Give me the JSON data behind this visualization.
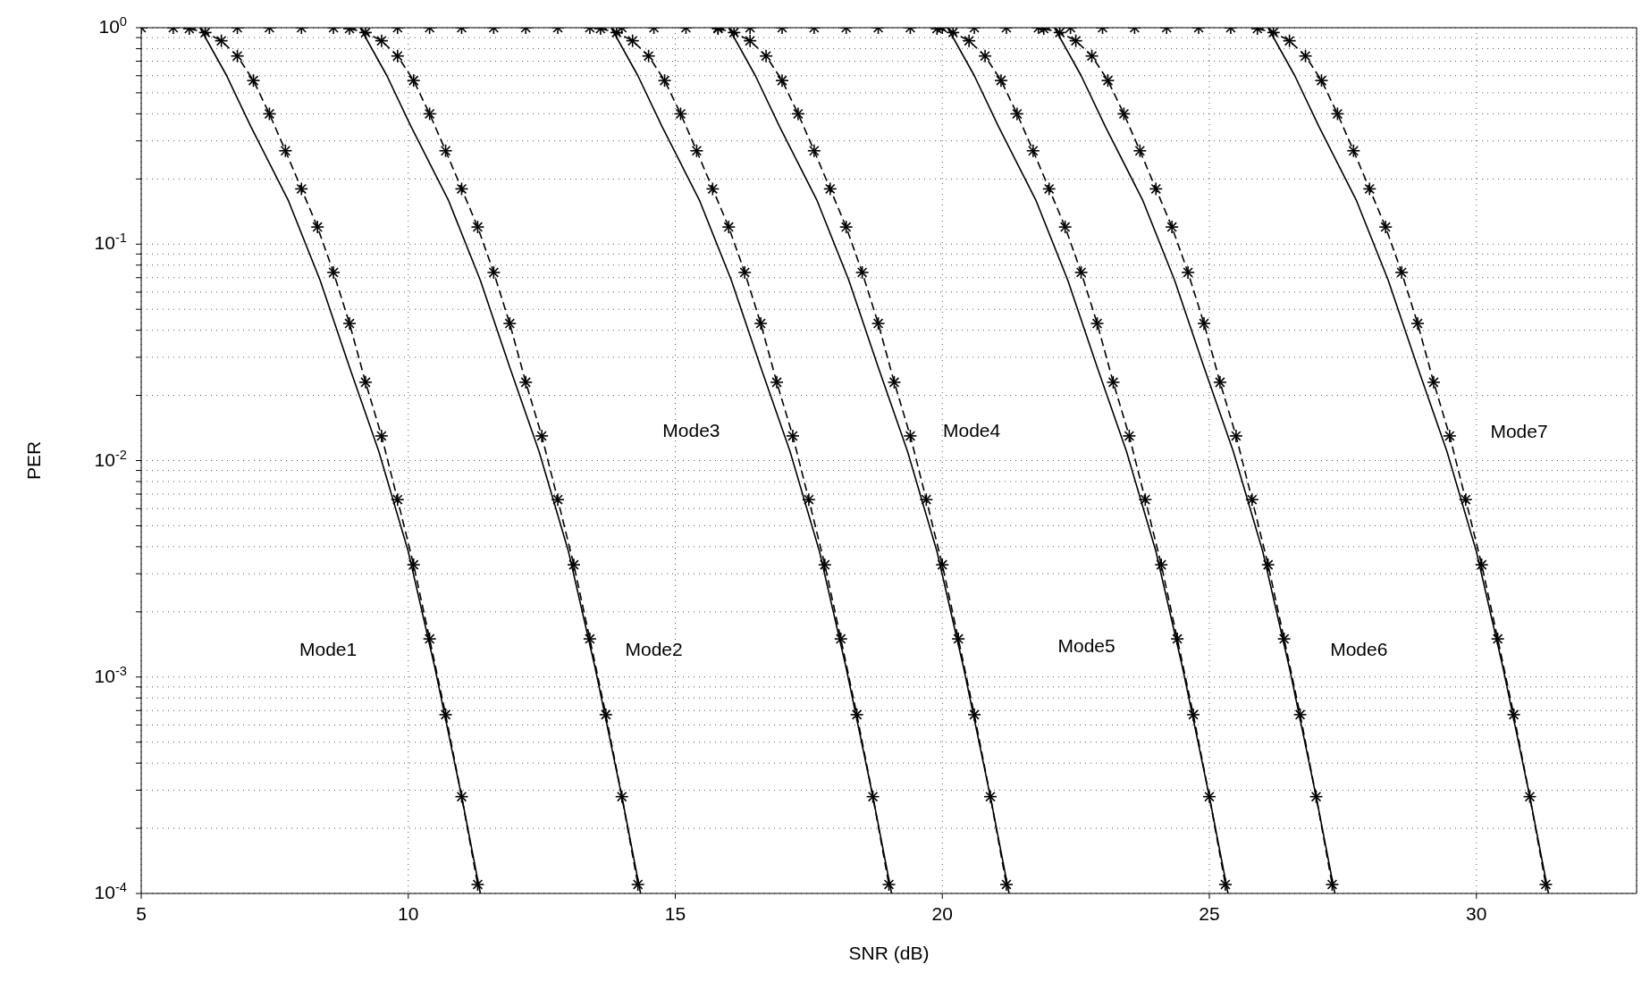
{
  "chart_data": {
    "type": "line",
    "xlabel": "SNR (dB)",
    "ylabel": "PER",
    "log": "y",
    "grid": true,
    "xlim": [
      5,
      33
    ],
    "xticks": [
      5,
      10,
      15,
      20,
      25,
      30
    ],
    "ylim": [
      0.0001,
      1
    ],
    "yticks": [
      {
        "value": 0.0001,
        "label": "10$^{-4}$"
      },
      {
        "value": 0.0002,
        "label": null
      },
      {
        "value": 0.0003,
        "label": null
      },
      {
        "value": 0.0004,
        "label": null
      },
      {
        "value": 0.0005,
        "label": null
      },
      {
        "value": 0.0006,
        "label": null
      },
      {
        "value": 0.0007,
        "label": null
      },
      {
        "value": 0.0008,
        "label": null
      },
      {
        "value": 0.0009,
        "label": null
      },
      {
        "value": 0.001,
        "label": "10$^{-3}$"
      },
      {
        "value": 0.002,
        "label": null
      },
      {
        "value": 0.003,
        "label": null
      },
      {
        "value": 0.004,
        "label": null
      },
      {
        "value": 0.005,
        "label": null
      },
      {
        "value": 0.006,
        "label": null
      },
      {
        "value": 0.007,
        "label": null
      },
      {
        "value": 0.008,
        "label": null
      },
      {
        "value": 0.009,
        "label": null
      },
      {
        "value": 0.01,
        "label": "10$^{-2}$"
      },
      {
        "value": 0.02,
        "label": null
      },
      {
        "value": 0.03,
        "label": null
      },
      {
        "value": 0.04,
        "label": null
      },
      {
        "value": 0.05,
        "label": null
      },
      {
        "value": 0.06,
        "label": null
      },
      {
        "value": 0.07,
        "label": null
      },
      {
        "value": 0.08,
        "label": null
      },
      {
        "value": 0.09,
        "label": null
      },
      {
        "value": 0.1,
        "label": "10$^{-1}$"
      },
      {
        "value": 0.2,
        "label": null
      },
      {
        "value": 0.3,
        "label": null
      },
      {
        "value": 0.4,
        "label": null
      },
      {
        "value": 0.5,
        "label": null
      },
      {
        "value": 0.6,
        "label": null
      },
      {
        "value": 0.7,
        "label": null
      },
      {
        "value": 0.8,
        "label": null
      },
      {
        "value": 0.9,
        "label": null
      },
      {
        "value": 1,
        "label": "10$^{0}$"
      }
    ],
    "annotations": [
      "Mode1",
      "Mode2",
      "Mode3",
      "Mode4",
      "Mode5",
      "Mode6",
      "Mode7"
    ],
    "series": [
      {
        "color": "#000000",
        "line_style": "dashed",
        "marker": "cross",
        "x": [
          5.9,
          6.2,
          6.5,
          6.8,
          7.1,
          7.4,
          7.7,
          8.0,
          8.3,
          8.6,
          8.9,
          9.2,
          9.5,
          9.8,
          10.1,
          10.4,
          10.7,
          11.0,
          11.3
        ],
        "values": [
          0.99,
          0.95,
          0.87,
          0.74,
          0.57,
          0.4,
          0.27,
          0.18,
          0.12,
          0.074,
          0.043,
          0.023,
          0.013,
          0.0066,
          0.0033,
          0.0015,
          0.00067,
          0.00028,
          0.00011
        ]
      },
      {
        "color": "#000000",
        "line_style": "solid",
        "marker": "none",
        "x": [
          6.1,
          6.6,
          7.05,
          7.75,
          8.35,
          8.9,
          9.45,
          10.0,
          10.5,
          11.0,
          11.35
        ],
        "values": [
          1,
          0.6,
          0.35,
          0.16,
          0.068,
          0.027,
          0.011,
          0.0038,
          0.0011,
          0.00028,
          0.0001
        ]
      },
      {
        "color": "#000000",
        "line_style": "dashed",
        "marker": "cross",
        "x": [
          8.9,
          9.2,
          9.5,
          9.8,
          10.1,
          10.4,
          10.7,
          11.0,
          11.3,
          11.6,
          11.9,
          12.2,
          12.5,
          12.8,
          13.1,
          13.4,
          13.7,
          14.0,
          14.3
        ],
        "values": [
          0.99,
          0.95,
          0.87,
          0.74,
          0.57,
          0.4,
          0.27,
          0.18,
          0.12,
          0.074,
          0.043,
          0.023,
          0.013,
          0.0066,
          0.0033,
          0.0015,
          0.00067,
          0.00028,
          0.00011
        ]
      },
      {
        "color": "#000000",
        "line_style": "solid",
        "marker": "none",
        "x": [
          9.1,
          9.6,
          10.05,
          10.75,
          11.35,
          11.9,
          12.45,
          13.0,
          13.5,
          14.0,
          14.35
        ],
        "values": [
          1,
          0.6,
          0.35,
          0.16,
          0.068,
          0.027,
          0.011,
          0.0038,
          0.0011,
          0.00028,
          0.0001
        ]
      },
      {
        "color": "#000000",
        "line_style": "dashed",
        "marker": "cross",
        "x": [
          13.6,
          13.9,
          14.2,
          14.5,
          14.8,
          15.1,
          15.4,
          15.7,
          16.0,
          16.3,
          16.6,
          16.9,
          17.2,
          17.5,
          17.8,
          18.1,
          18.4,
          18.7,
          19.0
        ],
        "values": [
          0.99,
          0.95,
          0.87,
          0.74,
          0.57,
          0.4,
          0.27,
          0.18,
          0.12,
          0.074,
          0.043,
          0.023,
          0.013,
          0.0066,
          0.0033,
          0.0015,
          0.00067,
          0.00028,
          0.00011
        ]
      },
      {
        "color": "#000000",
        "line_style": "solid",
        "marker": "none",
        "x": [
          13.8,
          14.3,
          14.75,
          15.45,
          16.05,
          16.6,
          17.15,
          17.7,
          18.2,
          18.7,
          19.05
        ],
        "values": [
          1,
          0.6,
          0.35,
          0.16,
          0.068,
          0.027,
          0.011,
          0.0038,
          0.0011,
          0.00028,
          0.0001
        ]
      },
      {
        "color": "#000000",
        "line_style": "dashed",
        "marker": "cross",
        "x": [
          15.8,
          16.1,
          16.4,
          16.7,
          17.0,
          17.3,
          17.6,
          17.9,
          18.2,
          18.5,
          18.8,
          19.1,
          19.4,
          19.7,
          20.0,
          20.3,
          20.6,
          20.9,
          21.2
        ],
        "values": [
          0.99,
          0.95,
          0.87,
          0.74,
          0.57,
          0.4,
          0.27,
          0.18,
          0.12,
          0.074,
          0.043,
          0.023,
          0.013,
          0.0066,
          0.0033,
          0.0015,
          0.00067,
          0.00028,
          0.00011
        ]
      },
      {
        "color": "#000000",
        "line_style": "solid",
        "marker": "none",
        "x": [
          16.0,
          16.5,
          16.95,
          17.65,
          18.25,
          18.8,
          19.35,
          19.9,
          20.4,
          20.9,
          21.25
        ],
        "values": [
          1,
          0.6,
          0.35,
          0.16,
          0.068,
          0.027,
          0.011,
          0.0038,
          0.0011,
          0.00028,
          0.0001
        ]
      },
      {
        "color": "#000000",
        "line_style": "dashed",
        "marker": "cross",
        "x": [
          19.9,
          20.2,
          20.5,
          20.8,
          21.1,
          21.4,
          21.7,
          22.0,
          22.3,
          22.6,
          22.9,
          23.2,
          23.5,
          23.8,
          24.1,
          24.4,
          24.7,
          25.0,
          25.3
        ],
        "values": [
          0.99,
          0.95,
          0.87,
          0.74,
          0.57,
          0.4,
          0.27,
          0.18,
          0.12,
          0.074,
          0.043,
          0.023,
          0.013,
          0.0066,
          0.0033,
          0.0015,
          0.00067,
          0.00028,
          0.00011
        ]
      },
      {
        "color": "#000000",
        "line_style": "solid",
        "marker": "none",
        "x": [
          20.1,
          20.6,
          21.05,
          21.75,
          22.35,
          22.9,
          23.45,
          24.0,
          24.5,
          25.0,
          25.35
        ],
        "values": [
          1,
          0.6,
          0.35,
          0.16,
          0.068,
          0.027,
          0.011,
          0.0038,
          0.0011,
          0.00028,
          0.0001
        ]
      },
      {
        "color": "#000000",
        "line_style": "dashed",
        "marker": "cross",
        "x": [
          21.9,
          22.2,
          22.5,
          22.8,
          23.1,
          23.4,
          23.7,
          24.0,
          24.3,
          24.6,
          24.9,
          25.2,
          25.5,
          25.8,
          26.1,
          26.4,
          26.7,
          27.0,
          27.3
        ],
        "values": [
          0.99,
          0.95,
          0.87,
          0.74,
          0.57,
          0.4,
          0.27,
          0.18,
          0.12,
          0.074,
          0.043,
          0.023,
          0.013,
          0.0066,
          0.0033,
          0.0015,
          0.00067,
          0.00028,
          0.00011
        ]
      },
      {
        "color": "#000000",
        "line_style": "solid",
        "marker": "none",
        "x": [
          22.1,
          22.6,
          23.05,
          23.75,
          24.35,
          24.9,
          25.45,
          26.0,
          26.5,
          27.0,
          27.35
        ],
        "values": [
          1,
          0.6,
          0.35,
          0.16,
          0.068,
          0.027,
          0.011,
          0.0038,
          0.0011,
          0.00028,
          0.0001
        ]
      },
      {
        "color": "#000000",
        "line_style": "dashed",
        "marker": "cross",
        "x": [
          25.9,
          26.2,
          26.5,
          26.8,
          27.1,
          27.4,
          27.7,
          28.0,
          28.3,
          28.6,
          28.9,
          29.2,
          29.5,
          29.8,
          30.1,
          30.4,
          30.7,
          31.0,
          31.3
        ],
        "values": [
          0.99,
          0.95,
          0.87,
          0.74,
          0.57,
          0.4,
          0.27,
          0.18,
          0.12,
          0.074,
          0.043,
          0.023,
          0.013,
          0.0066,
          0.0033,
          0.0015,
          0.00067,
          0.00028,
          0.00011
        ]
      },
      {
        "color": "#000000",
        "line_style": "solid",
        "marker": "none",
        "x": [
          26.1,
          26.6,
          27.05,
          27.75,
          28.35,
          28.9,
          29.45,
          30.0,
          30.5,
          31.0,
          31.35
        ],
        "values": [
          1,
          0.6,
          0.35,
          0.16,
          0.068,
          0.027,
          0.011,
          0.0038,
          0.0011,
          0.00028,
          0.0001
        ]
      },
      {
        "type": "scatter",
        "color": "#000000",
        "marker": "cross",
        "x": [
          5.0,
          5.6,
          6.8,
          7.4,
          8.0,
          8.6,
          9.8,
          10.4,
          11.0,
          11.6,
          12.2,
          12.8,
          13.4,
          14.0,
          14.6,
          15.2,
          15.8,
          16.4,
          17.0,
          17.6,
          18.2,
          18.8,
          19.4,
          20.0,
          20.6,
          21.2,
          21.8,
          22.4,
          23.0,
          23.6,
          24.2,
          24.8,
          25.4
        ],
        "values": [
          1,
          1,
          1,
          1,
          1,
          1,
          1,
          1,
          1,
          1,
          1,
          1,
          1,
          1,
          1,
          1,
          1,
          1,
          1,
          1,
          1,
          1,
          1,
          1,
          1,
          1,
          1,
          1,
          1,
          1,
          1,
          1,
          1
        ]
      }
    ]
  }
}
